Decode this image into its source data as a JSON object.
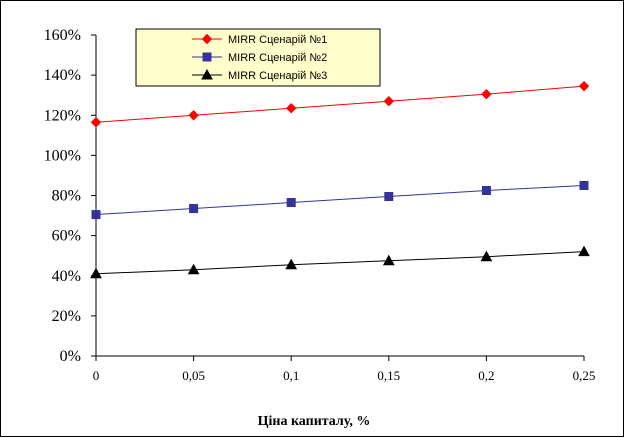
{
  "chart_data": {
    "type": "line",
    "title": "",
    "xlabel": "Ціна капиталу, %",
    "ylabel": "",
    "x": [
      0,
      0.05,
      0.1,
      0.15,
      0.2,
      0.25
    ],
    "x_tick_labels": [
      "0",
      "0,05",
      "0,1",
      "0,15",
      "0,2",
      "0,25"
    ],
    "ylim": [
      0,
      1.6
    ],
    "y_ticks": [
      0,
      0.2,
      0.4,
      0.6,
      0.8,
      1.0,
      1.2,
      1.4,
      1.6
    ],
    "y_tick_labels": [
      "0%",
      "20%",
      "40%",
      "60%",
      "80%",
      "100%",
      "120%",
      "140%",
      "160%"
    ],
    "grid": false,
    "legend_position": "top-center",
    "plot_background": "#ffffff",
    "legend_background": "#ffffcc",
    "series": [
      {
        "name": "MIRR Сценарій №1",
        "color": "#ff0000",
        "marker": "diamond",
        "values": [
          1.165,
          1.2,
          1.235,
          1.27,
          1.305,
          1.345
        ]
      },
      {
        "name": "MIRR Сценарій №2",
        "color": "#333399",
        "marker": "square",
        "values": [
          0.705,
          0.735,
          0.765,
          0.795,
          0.825,
          0.85
        ]
      },
      {
        "name": "MIRR Сценарій №3",
        "color": "#000000",
        "marker": "triangle",
        "values": [
          0.41,
          0.43,
          0.455,
          0.475,
          0.495,
          0.52
        ]
      }
    ]
  }
}
